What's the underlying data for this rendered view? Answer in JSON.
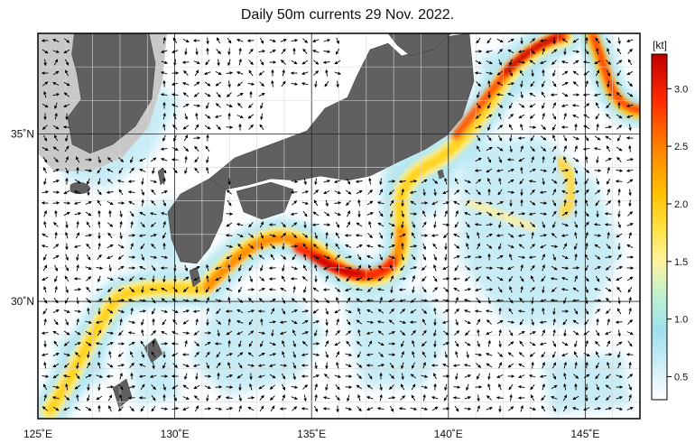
{
  "title": "Daily 50m currents 29 Nov. 2022.",
  "map": {
    "lon_range": [
      125,
      147
    ],
    "lat_range": [
      26.5,
      38
    ],
    "lon_ticks": [
      {
        "value": 125,
        "label": "125˚E"
      },
      {
        "value": 130,
        "label": "130˚E"
      },
      {
        "value": 135,
        "label": "135˚E"
      },
      {
        "value": 140,
        "label": "140˚E"
      },
      {
        "value": 145,
        "label": "145˚E"
      }
    ],
    "lat_ticks": [
      {
        "value": 30,
        "label": "30˚N"
      },
      {
        "value": 35,
        "label": "35˚N"
      }
    ],
    "grid": true,
    "colors": {
      "land": "#606060",
      "shelf": "#c8c8c8",
      "sea": "#ffffff"
    }
  },
  "colorbar": {
    "unit": "[kt]",
    "range": [
      0.3,
      3.3
    ],
    "ticks": [
      {
        "value": 0.5,
        "label": "0.5"
      },
      {
        "value": 1.0,
        "label": "1.0"
      },
      {
        "value": 1.5,
        "label": "1.5"
      },
      {
        "value": 2.0,
        "label": "2.0"
      },
      {
        "value": 2.5,
        "label": "2.5"
      },
      {
        "value": 3.0,
        "label": "3.0"
      }
    ],
    "stops": [
      {
        "value": 0.3,
        "color": "#ffffff"
      },
      {
        "value": 0.6,
        "color": "#cdeef6"
      },
      {
        "value": 0.9,
        "color": "#9fe0ee"
      },
      {
        "value": 1.2,
        "color": "#bff0d0"
      },
      {
        "value": 1.5,
        "color": "#fff3a0"
      },
      {
        "value": 1.8,
        "color": "#ffe040"
      },
      {
        "value": 2.1,
        "color": "#ffc000"
      },
      {
        "value": 2.5,
        "color": "#ff8000"
      },
      {
        "value": 2.9,
        "color": "#ff2a00"
      },
      {
        "value": 3.3,
        "color": "#c00000"
      }
    ]
  }
}
